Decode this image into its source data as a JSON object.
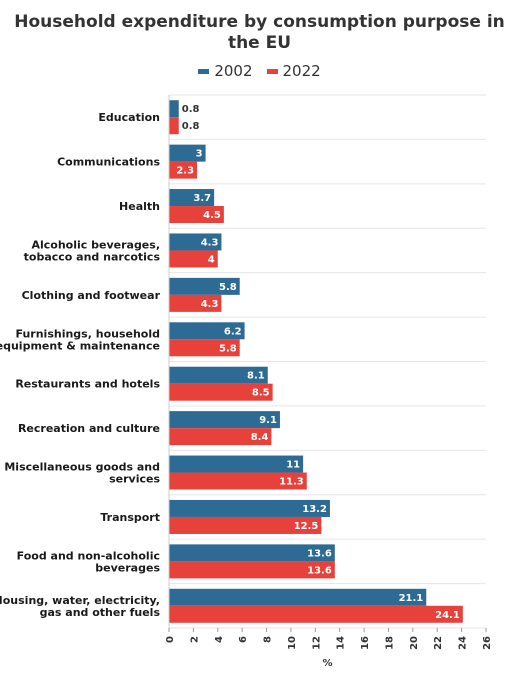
{
  "chart_data": {
    "type": "bar",
    "orientation": "horizontal",
    "title": "Household expenditure by consumption purpose in the EU",
    "xlabel": "%",
    "ylabel": "",
    "xlim": [
      0,
      26
    ],
    "ticks": [
      "0",
      "2",
      "4",
      "6",
      "8",
      "10",
      "12",
      "14",
      "16",
      "18",
      "20",
      "22",
      "24",
      "26"
    ],
    "grid": true,
    "legend_position": "top-center",
    "categories": [
      [
        "Education"
      ],
      [
        "Communications"
      ],
      [
        "Health"
      ],
      [
        "Alcoholic beverages,",
        "tobacco and narcotics"
      ],
      [
        "Clothing and footwear"
      ],
      [
        "Furnishings, household",
        "equipment & maintenance"
      ],
      [
        "Restaurants and hotels"
      ],
      [
        "Recreation and culture"
      ],
      [
        "Miscellaneous goods and",
        "services"
      ],
      [
        "Transport"
      ],
      [
        "Food and non-alcoholic",
        "beverages"
      ],
      [
        "Housing, water, electricity,",
        "gas and other fuels"
      ]
    ],
    "series": [
      {
        "name": "2002",
        "color": "#2e6b94",
        "values": [
          0.8,
          3,
          3.7,
          4.3,
          5.8,
          6.2,
          8.1,
          9.1,
          11,
          13.2,
          13.6,
          21.1
        ]
      },
      {
        "name": "2022",
        "color": "#e6413b",
        "values": [
          0.8,
          2.3,
          4.5,
          4,
          4.3,
          5.8,
          8.5,
          8.4,
          11.3,
          12.5,
          13.6,
          24.1
        ]
      }
    ]
  }
}
